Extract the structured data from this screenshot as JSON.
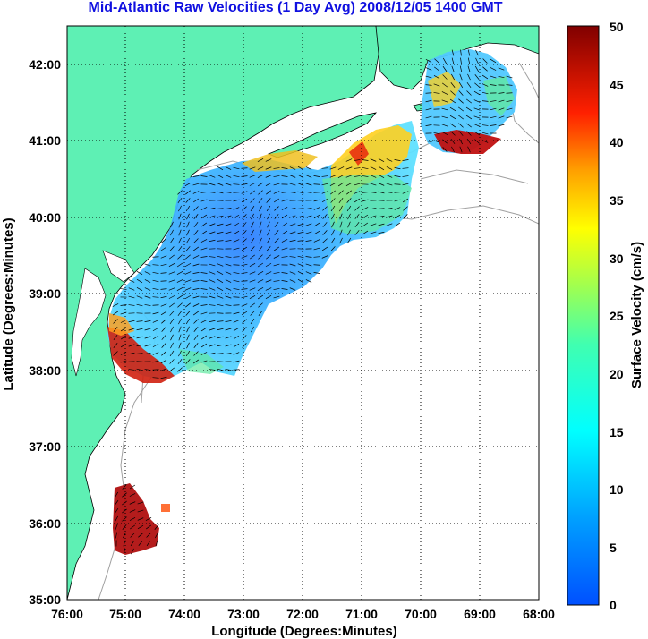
{
  "title": "Mid-Atlantic Raw Velocities (1 Day Avg) 2008/12/05 1400 GMT",
  "map": {
    "xlabel": "Longitude (Degrees:Minutes)",
    "ylabel": "Latitude (Degrees:Minutes)",
    "x_ticks": [
      "76:00",
      "75:00",
      "74:00",
      "73:00",
      "72:00",
      "71:00",
      "70:00",
      "69:00",
      "68:00"
    ],
    "y_ticks": [
      "42:00",
      "41:00",
      "40:00",
      "39:00",
      "38:00",
      "37:00",
      "36:00",
      "35:00"
    ],
    "land_color": "#5ef0b4",
    "grid": "dotted"
  },
  "colorbar": {
    "label": "Surface Velocity (cm/s)",
    "ticks": [
      "50",
      "45",
      "40",
      "35",
      "30",
      "25",
      "20",
      "15",
      "10",
      "5",
      "0"
    ],
    "range": [
      0,
      50
    ],
    "colormap": "jet"
  }
}
